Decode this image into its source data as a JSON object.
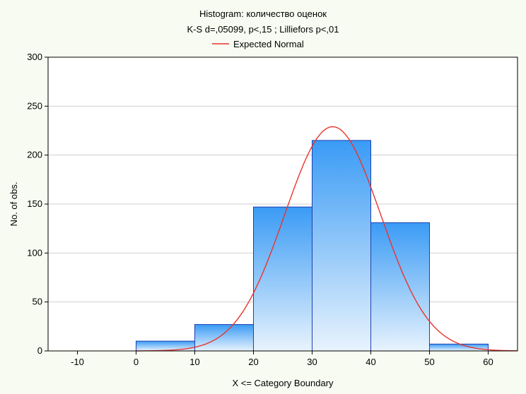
{
  "chart_data": {
    "type": "bar",
    "title": "Histogram: количество оценок",
    "subtitle": "K-S d=,05099, p<,15 ; Lilliefors p<,01",
    "legend": {
      "entries": [
        {
          "name": "Expected Normal",
          "color": "#e8352e"
        }
      ],
      "placement": "top-center"
    },
    "xlabel": "X <= Category Boundary",
    "ylabel": "No. of obs.",
    "xlim": [
      -15,
      65
    ],
    "ylim": [
      0,
      300
    ],
    "xticks": [
      -10,
      0,
      10,
      20,
      30,
      40,
      50,
      60
    ],
    "yticks": [
      0,
      50,
      100,
      150,
      200,
      250,
      300
    ],
    "grid": "horizontal",
    "bins": [
      {
        "from": 0,
        "to": 10,
        "count": 10
      },
      {
        "from": 10,
        "to": 20,
        "count": 27
      },
      {
        "from": 20,
        "to": 30,
        "count": 147
      },
      {
        "from": 30,
        "to": 40,
        "count": 215
      },
      {
        "from": 40,
        "to": 50,
        "count": 131
      },
      {
        "from": 50,
        "to": 60,
        "count": 7
      }
    ],
    "expected_normal": {
      "mean": 33.5,
      "sd": 8.2,
      "peak": 229,
      "color": "#e8352e"
    },
    "colors": {
      "bar_top": "#3a9bf5",
      "bar_bottom": "#e8f3fd",
      "bar_edge": "#1a3fb0"
    }
  }
}
